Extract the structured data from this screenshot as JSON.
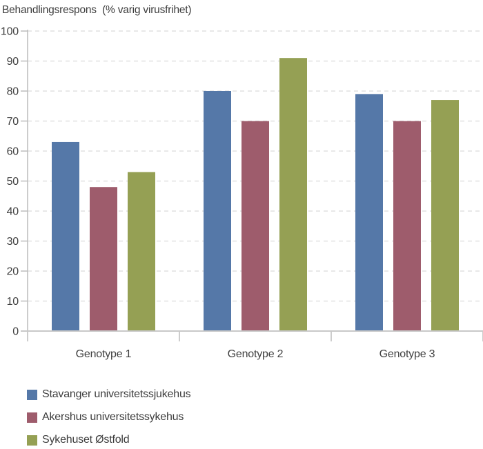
{
  "chart_data": {
    "type": "bar",
    "title": "Behandlingsrespons  (% varig virusfrihet)",
    "categories": [
      "Genotype 1",
      "Genotype 2",
      "Genotype 3"
    ],
    "series": [
      {
        "name": "Stavanger universitetssjukehus",
        "color": "#5578a8",
        "values": [
          63,
          80,
          79
        ]
      },
      {
        "name": "Akershus universitetssykehus",
        "color": "#9e5c6c",
        "values": [
          48,
          70,
          70
        ]
      },
      {
        "name": "Sykehuset Østfold",
        "color": "#95a054",
        "values": [
          53,
          91,
          77
        ]
      }
    ],
    "xlabel": "",
    "ylabel": "",
    "ylim": [
      0,
      100
    ],
    "yticks": [
      0,
      10,
      20,
      30,
      40,
      50,
      60,
      70,
      80,
      90,
      100
    ],
    "grid": "horizontal-dashed",
    "legend_position": "bottom-left",
    "colors": {
      "grid": "#dadada",
      "axis": "#bcbcbc",
      "baseline": "#c8c8c8",
      "text": "#3f3f3f"
    }
  }
}
